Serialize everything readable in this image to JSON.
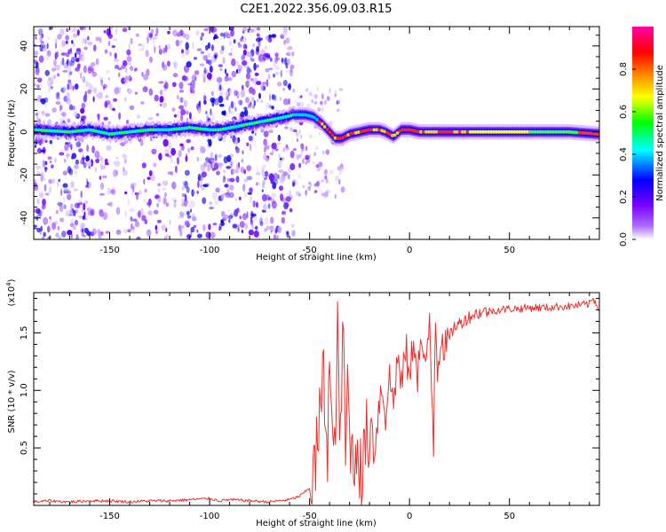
{
  "figure_title": "C2E1.2022.356.09.03.R15",
  "chart_data": [
    {
      "type": "heatmap",
      "xlabel": "Height of straight line (km)",
      "ylabel": "Frequency (Hz)",
      "xlim": [
        -188,
        95
      ],
      "ylim": [
        -50,
        49
      ],
      "x_ticks": [
        -150,
        -100,
        -50,
        0,
        50
      ],
      "x_tick_labels": [
        "-150",
        "-100",
        "-50",
        "0",
        "50"
      ],
      "y_ticks": [
        -40,
        -20,
        0,
        20,
        40
      ],
      "y_tick_labels": [
        "-40",
        "-20",
        "0",
        "20",
        "40"
      ],
      "colorbar": {
        "label": "Normalized spectral amplitude",
        "range": [
          0,
          1
        ],
        "ticks": [
          0.0,
          0.2,
          0.4,
          0.6,
          0.8
        ],
        "tick_labels": [
          "0.0",
          "0.2",
          "0.4",
          "0.6",
          "0.8"
        ],
        "colors": [
          "#ffffff",
          "#7a00ff",
          "#0000ff",
          "#00ffff",
          "#00ff00",
          "#ffff00",
          "#ff8000",
          "#ff0000",
          "#ff00aa"
        ]
      },
      "ridge_x": [
        -188,
        -170,
        -160,
        -150,
        -140,
        -130,
        -120,
        -110,
        -100,
        -95,
        -62,
        -58,
        -52,
        -48,
        -44,
        -40,
        -37,
        -34,
        -30,
        -25,
        -20,
        -15,
        -12,
        -8,
        -4,
        0,
        5,
        10,
        20,
        40,
        60,
        80,
        95
      ],
      "ridge_y": [
        1,
        0,
        1,
        -1,
        0,
        1,
        1,
        2,
        1,
        1,
        7,
        8,
        8,
        7,
        4,
        0,
        -3,
        -3,
        -1,
        0,
        1,
        1,
        0,
        -2,
        1,
        1,
        0,
        0,
        0,
        0,
        0,
        0,
        -1
      ]
    },
    {
      "type": "line",
      "xlabel": "Height of straight line (km)",
      "ylabel": "SNR (10 * v/v)",
      "y_scale_label": "(x10",
      "y_scale_exp": "4",
      "y_scale_close": ")",
      "xlim": [
        -188,
        95
      ],
      "ylim": [
        0,
        1.85
      ],
      "x_ticks": [
        -150,
        -100,
        -50,
        0,
        50
      ],
      "x_tick_labels": [
        "-150",
        "-100",
        "-50",
        "0",
        "50"
      ],
      "y_ticks": [
        0.5,
        1.0,
        1.5
      ],
      "y_tick_labels": [
        "0.5",
        "1.0",
        "1.5"
      ],
      "series": [
        {
          "color": "#e8322f",
          "x": [
            -188,
            -180,
            -170,
            -160,
            -150,
            -140,
            -130,
            -120,
            -110,
            -100,
            -95,
            -90,
            -80,
            -70,
            -60,
            -55,
            -50,
            -47,
            -45,
            -43,
            -41,
            -40,
            -38,
            -36,
            -35,
            -33,
            -32,
            -31,
            -30,
            -28,
            -26,
            -24,
            -22,
            -20,
            -19,
            -18,
            -16,
            -14,
            -12,
            -10,
            -8,
            -6,
            -4,
            -2,
            0,
            2,
            4,
            6,
            8,
            10,
            12,
            13,
            14,
            16,
            18,
            20,
            22,
            25,
            28,
            32,
            36,
            40,
            45,
            50,
            55,
            60,
            65,
            70,
            75,
            80,
            85,
            90,
            92,
            95
          ],
          "y": [
            0.03,
            0.04,
            0.03,
            0.04,
            0.04,
            0.03,
            0.04,
            0.04,
            0.05,
            0.06,
            0.04,
            0.05,
            0.04,
            0.03,
            0.05,
            0.08,
            0.15,
            0.35,
            0.75,
            1.1,
            0.55,
            1.25,
            0.25,
            1.45,
            0.6,
            1.5,
            0.4,
            1.05,
            0.7,
            0.3,
            0.65,
            0.15,
            0.6,
            0.55,
            0.8,
            0.45,
            0.75,
            1.05,
            0.8,
            1.1,
            0.9,
            1.3,
            1.0,
            1.4,
            1.05,
            1.5,
            1.15,
            1.45,
            1.1,
            1.62,
            0.55,
            1.7,
            1.2,
            1.5,
            1.35,
            1.45,
            1.55,
            1.58,
            1.62,
            1.66,
            1.68,
            1.69,
            1.7,
            1.71,
            1.71,
            1.72,
            1.72,
            1.72,
            1.73,
            1.73,
            1.74,
            1.75,
            1.8,
            1.7
          ]
        }
      ]
    }
  ]
}
